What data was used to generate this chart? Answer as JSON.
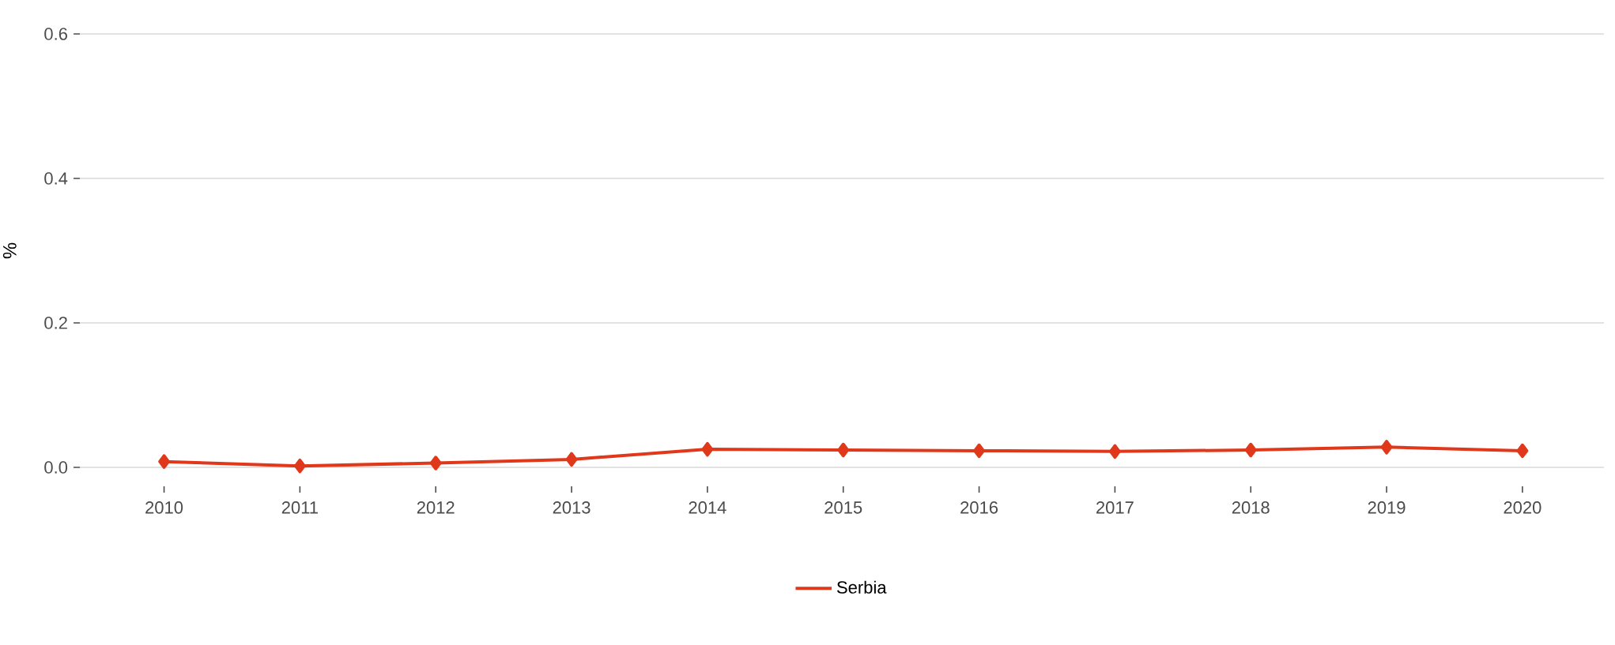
{
  "chart_data": {
    "type": "line",
    "ylabel": "%",
    "categories": [
      "2010",
      "2011",
      "2012",
      "2013",
      "2014",
      "2015",
      "2016",
      "2017",
      "2018",
      "2019",
      "2020"
    ],
    "series": [
      {
        "name": "Serbia",
        "color": "#e0381a",
        "values": [
          0.008,
          0.002,
          0.006,
          0.011,
          0.025,
          0.024,
          0.023,
          0.022,
          0.024,
          0.028,
          0.023
        ]
      }
    ],
    "ylim": [
      0,
      0.6
    ],
    "yticks": [
      {
        "value": 0,
        "label": "0.0"
      },
      0.2,
      0.4,
      0.6
    ],
    "grid": "y",
    "legend": "bottom",
    "marker": "diamond",
    "line_style": "solid"
  }
}
